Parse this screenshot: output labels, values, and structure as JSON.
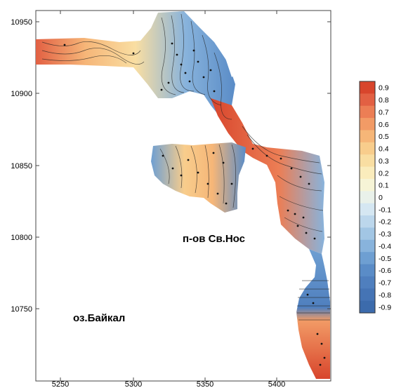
{
  "map": {
    "x_axis": {
      "ticks": [
        "5250",
        "5300",
        "5350",
        "5400"
      ]
    },
    "y_axis": {
      "ticks": [
        "10950",
        "10900",
        "10850",
        "10800",
        "10750"
      ]
    },
    "labels": {
      "peninsula": "п-ов Св.Нос",
      "lake": "оз.Байкал"
    }
  },
  "colorbar": {
    "levels": [
      "0.9",
      "0.8",
      "0.7",
      "0.6",
      "0.5",
      "0.4",
      "0.3",
      "0.2",
      "0.1",
      "0",
      "-0.1",
      "-0.2",
      "-0.3",
      "-0.4",
      "-0.5",
      "-0.6",
      "-0.7",
      "-0.8",
      "-0.9"
    ],
    "colors": [
      "#d8452c",
      "#e26043",
      "#ec7e55",
      "#f29b66",
      "#f6b678",
      "#f8cd8c",
      "#f9dea2",
      "#faecbc",
      "#f6f4d6",
      "#e9f1ea",
      "#d5e7f2",
      "#bcd7ec",
      "#a2c6e4",
      "#88b3dc",
      "#6e9fd2",
      "#5a8cc7",
      "#4f7fbe",
      "#4574b5",
      "#3c6bac"
    ]
  }
}
